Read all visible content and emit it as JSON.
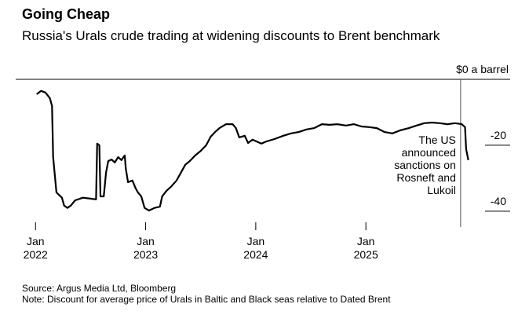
{
  "chart_data": {
    "type": "line",
    "title": "Going Cheap",
    "subtitle": "Russia's Urals crude trading at widening discounts to Brent benchmark",
    "source": "Source: Argus Media Ltd, Bloomberg",
    "note": "Note: Discount for average price of Urals in Baltic and Black seas relative to Dated Brent",
    "annotation": {
      "text": "The US announced sanctions on Rosneft and Lukoil",
      "x": 2025.86
    },
    "color": "#000000",
    "x": [
      2022.01,
      2022.05,
      2022.09,
      2022.13,
      2022.15,
      2022.16,
      2022.19,
      2022.24,
      2022.26,
      2022.29,
      2022.32,
      2022.36,
      2022.43,
      2022.5,
      2022.55,
      2022.56,
      2022.58,
      2022.59,
      2022.62,
      2022.64,
      2022.66,
      2022.69,
      2022.72,
      2022.75,
      2022.78,
      2022.81,
      2022.82,
      2022.84,
      2022.88,
      2022.91,
      2022.93,
      2022.96,
      2022.99,
      2023.03,
      2023.08,
      2023.13,
      2023.15,
      2023.19,
      2023.23,
      2023.28,
      2023.32,
      2023.36,
      2023.4,
      2023.45,
      2023.5,
      2023.55,
      2023.59,
      2023.63,
      2023.67,
      2023.73,
      2023.79,
      2023.82,
      2023.85,
      2023.9,
      2023.93,
      2023.97,
      2024.05,
      2024.1,
      2024.17,
      2024.25,
      2024.32,
      2024.39,
      2024.46,
      2024.53,
      2024.6,
      2024.67,
      2024.74,
      2024.82,
      2024.89,
      2024.96,
      2025.03,
      2025.1,
      2025.17,
      2025.24,
      2025.31,
      2025.39,
      2025.46,
      2025.53,
      2025.6,
      2025.67,
      2025.74,
      2025.81,
      2025.87,
      2025.9,
      2025.91,
      2025.93
    ],
    "values": [
      -4.5,
      -3.5,
      -4,
      -5.7,
      -8.1,
      -23.6,
      -34.3,
      -35.9,
      -38.3,
      -39,
      -38.3,
      -36.7,
      -35.9,
      -36.2,
      -36.4,
      -19.5,
      -20,
      -35.5,
      -35.5,
      -28.3,
      -24.8,
      -24.3,
      -25.2,
      -23.6,
      -24.5,
      -23.1,
      -27.1,
      -31.2,
      -30.7,
      -33.1,
      -34.3,
      -35.5,
      -39,
      -39.8,
      -39,
      -38.6,
      -35.5,
      -33.8,
      -32.6,
      -30.7,
      -28.3,
      -25.9,
      -24.8,
      -23.1,
      -21.7,
      -20,
      -17.4,
      -16,
      -14.8,
      -13.6,
      -13.6,
      -14.8,
      -17.6,
      -17.1,
      -19.3,
      -18.3,
      -19.5,
      -18.8,
      -18.1,
      -17.1,
      -16.4,
      -16,
      -15.2,
      -14.8,
      -13.6,
      -13.8,
      -13.6,
      -14,
      -13.6,
      -14.3,
      -14.5,
      -14.8,
      -16,
      -16.4,
      -15.5,
      -14.8,
      -14,
      -13.3,
      -13.1,
      -13.3,
      -13.6,
      -13.3,
      -13.6,
      -14.5,
      -21.2,
      -24.5
    ],
    "xlim": [
      2021.82,
      2026.31
    ],
    "xticks": [
      {
        "value": 2022,
        "label": "Jan 2022"
      },
      {
        "value": 2023,
        "label": "Jan 2023"
      },
      {
        "value": 2024,
        "label": "Jan 2024"
      },
      {
        "value": 2025,
        "label": "Jan 2025"
      }
    ],
    "ylim": [
      -44.8,
      0
    ],
    "yticks": [
      {
        "value": 0,
        "label": "$0 a barrel"
      },
      -20,
      -40
    ]
  }
}
